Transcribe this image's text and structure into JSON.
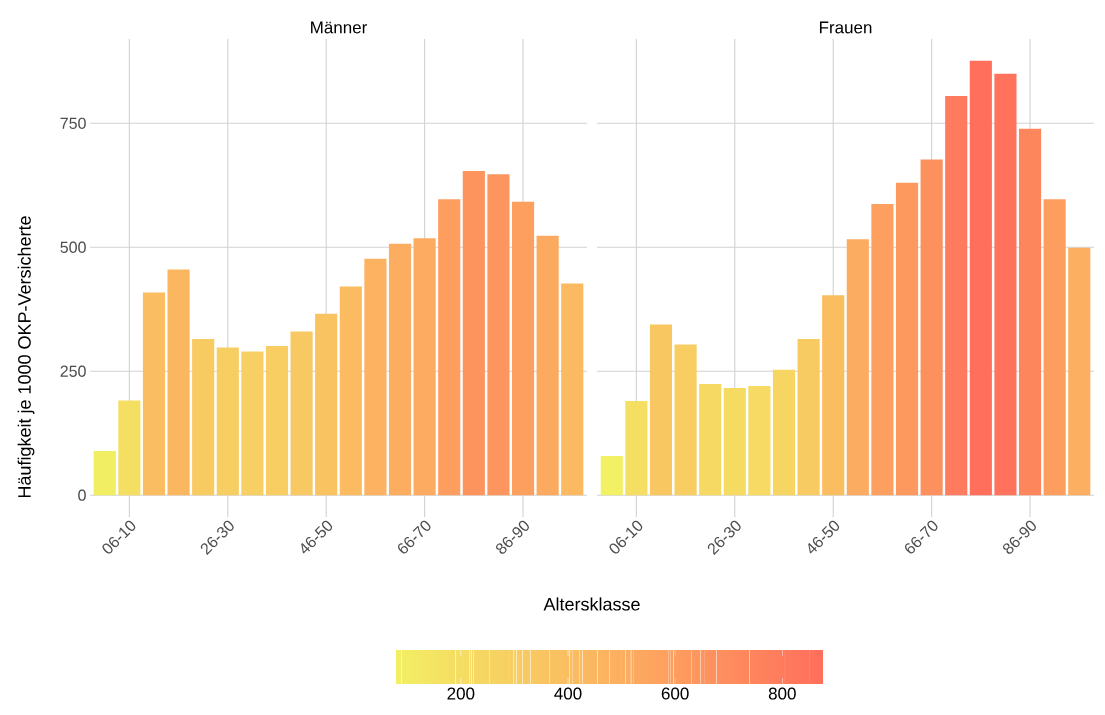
{
  "chart_data": [
    {
      "type": "bar",
      "title": "Männer",
      "xlabel": "Altersklasse",
      "ylabel": "Häufigkeit je 1000 OKP-Versicherte",
      "categories": [
        null,
        "06-10",
        null,
        null,
        null,
        "26-30",
        null,
        null,
        null,
        "46-50",
        null,
        null,
        null,
        "66-70",
        null,
        null,
        null,
        "86-90",
        null,
        null
      ],
      "values": [
        89,
        191,
        409,
        455,
        315,
        298,
        290,
        301,
        330,
        366,
        421,
        477,
        507,
        518,
        597,
        654,
        647,
        592,
        523,
        427
      ],
      "colors": [
        "#f2ee64",
        "#f5df63",
        "#fabd61",
        "#fbb660",
        "#f8cb62",
        "#f7ce62",
        "#f7cf62",
        "#f8cd62",
        "#f8c962",
        "#f9c361",
        "#fbbb61",
        "#fcb260",
        "#fcad60",
        "#fcab60",
        "#fd9e5f",
        "#fd945e",
        "#fd965e",
        "#fd9f5f",
        "#fcaa60",
        "#fbba61"
      ],
      "ylim": [
        -44,
        920
      ],
      "yticks": [
        0,
        250,
        500,
        750
      ],
      "grid": true,
      "clim": [
        79,
        876
      ],
      "cticks": [
        200,
        400,
        600,
        800
      ]
    },
    {
      "type": "bar",
      "title": "Frauen",
      "categories": [
        null,
        "06-10",
        null,
        null,
        null,
        "26-30",
        null,
        null,
        null,
        "46-50",
        null,
        null,
        null,
        "66-70",
        null,
        null,
        null,
        "86-90",
        null,
        null
      ],
      "values": [
        79,
        190,
        344,
        304,
        224,
        216,
        220,
        253,
        315,
        403,
        516,
        587,
        630,
        677,
        805,
        876,
        850,
        739,
        597,
        499
      ],
      "colors": [
        "#f2f064",
        "#f5df63",
        "#f9c762",
        "#f8cd62",
        "#f6d963",
        "#f6db63",
        "#f6da63",
        "#f6d563",
        "#f8cb62",
        "#fabe61",
        "#fcac60",
        "#fda05f",
        "#fd985e",
        "#fd915e",
        "#fe7b5d",
        "#ff6f5c",
        "#ff735c",
        "#fe865d",
        "#fd9e5f",
        "#fcaf60"
      ],
      "ylim": [
        -44,
        920
      ],
      "yticks": [
        0,
        250,
        500,
        750
      ],
      "grid": true,
      "tick_labels": "x"
    }
  ]
}
